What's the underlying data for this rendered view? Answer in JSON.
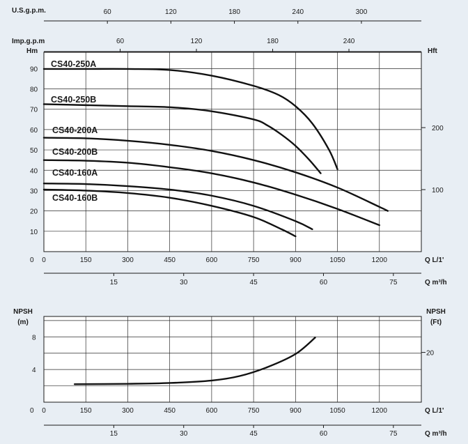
{
  "chart_data": [
    {
      "type": "line",
      "title": "",
      "x_unit_primary": "Q L/1'",
      "x_ticks_primary": [
        0,
        150,
        300,
        450,
        600,
        750,
        900,
        1050,
        1200
      ],
      "xlim": [
        0,
        1350
      ],
      "x_unit_m3h": "Q m³/h",
      "x_ticks_m3h": [
        15,
        30,
        45,
        60,
        75
      ],
      "x_unit_usgpm": "U.S.g.p.m.",
      "x_ticks_usgpm": [
        60,
        120,
        180,
        240,
        300
      ],
      "x_unit_impgpm": "Imp.g.p.m",
      "x_ticks_impgpm": [
        60,
        120,
        180,
        240
      ],
      "ylabel_left": "Hm",
      "y_ticks_left": [
        10,
        20,
        30,
        40,
        50,
        60,
        70,
        80,
        90
      ],
      "ylim": [
        0,
        98
      ],
      "ylabel_right": "Hft",
      "y_ticks_right": [
        100,
        200
      ],
      "grid": true,
      "series": [
        {
          "name": "CS40-250A",
          "points": [
            [
              0,
              89.8
            ],
            [
              150,
              89.8
            ],
            [
              300,
              89.8
            ],
            [
              450,
              89.3
            ],
            [
              600,
              86.5
            ],
            [
              750,
              81.5
            ],
            [
              840,
              77
            ],
            [
              900,
              71.5
            ],
            [
              960,
              63
            ],
            [
              1020,
              50
            ],
            [
              1050,
              40.5
            ]
          ]
        },
        {
          "name": "CS40-250B",
          "points": [
            [
              0,
              72.5
            ],
            [
              150,
              72
            ],
            [
              300,
              71.5
            ],
            [
              450,
              71
            ],
            [
              600,
              69
            ],
            [
              750,
              65
            ],
            [
              800,
              62
            ],
            [
              850,
              57.5
            ],
            [
              900,
              52
            ],
            [
              950,
              45
            ],
            [
              990,
              38.5
            ]
          ]
        },
        {
          "name": "CS40-200A",
          "points": [
            [
              0,
              56
            ],
            [
              150,
              55.7
            ],
            [
              300,
              54.5
            ],
            [
              450,
              52.5
            ],
            [
              600,
              49.5
            ],
            [
              750,
              45
            ],
            [
              900,
              39
            ],
            [
              1050,
              31.5
            ],
            [
              1200,
              22
            ],
            [
              1230,
              20
            ]
          ]
        },
        {
          "name": "CS40-200B",
          "points": [
            [
              0,
              45
            ],
            [
              150,
              44.7
            ],
            [
              300,
              43.7
            ],
            [
              450,
              41.5
            ],
            [
              600,
              38.5
            ],
            [
              750,
              34
            ],
            [
              900,
              28
            ],
            [
              1050,
              21
            ],
            [
              1200,
              13
            ]
          ]
        },
        {
          "name": "CS40-160A",
          "points": [
            [
              0,
              33.5
            ],
            [
              150,
              33.2
            ],
            [
              300,
              32.2
            ],
            [
              450,
              30.5
            ],
            [
              600,
              27.5
            ],
            [
              750,
              22.5
            ],
            [
              900,
              15
            ],
            [
              960,
              11
            ]
          ]
        },
        {
          "name": "CS40-160B",
          "points": [
            [
              0,
              30.5
            ],
            [
              150,
              30
            ],
            [
              300,
              28.8
            ],
            [
              450,
              26.5
            ],
            [
              600,
              22.5
            ],
            [
              750,
              17
            ],
            [
              850,
              11
            ],
            [
              900,
              7.5
            ]
          ]
        }
      ]
    },
    {
      "type": "line",
      "title": "",
      "x_unit_primary": "Q L/1'",
      "x_ticks_primary": [
        0,
        150,
        300,
        450,
        600,
        750,
        900,
        1050,
        1200
      ],
      "xlim": [
        0,
        1350
      ],
      "x_unit_m3h": "Q m³/h",
      "x_ticks_m3h": [
        15,
        30,
        45,
        60,
        75
      ],
      "ylabel_left": "NPSH (m)",
      "y_ticks_left": [
        4,
        8
      ],
      "ylim": [
        0,
        10.5
      ],
      "ylabel_right": "NPSH (Ft)",
      "y_ticks_right": [
        20
      ],
      "grid": true,
      "series": [
        {
          "name": "",
          "points": [
            [
              110,
              2.2
            ],
            [
              300,
              2.25
            ],
            [
              450,
              2.35
            ],
            [
              600,
              2.65
            ],
            [
              700,
              3.2
            ],
            [
              800,
              4.3
            ],
            [
              900,
              5.9
            ],
            [
              970,
              7.9
            ]
          ]
        }
      ]
    }
  ]
}
